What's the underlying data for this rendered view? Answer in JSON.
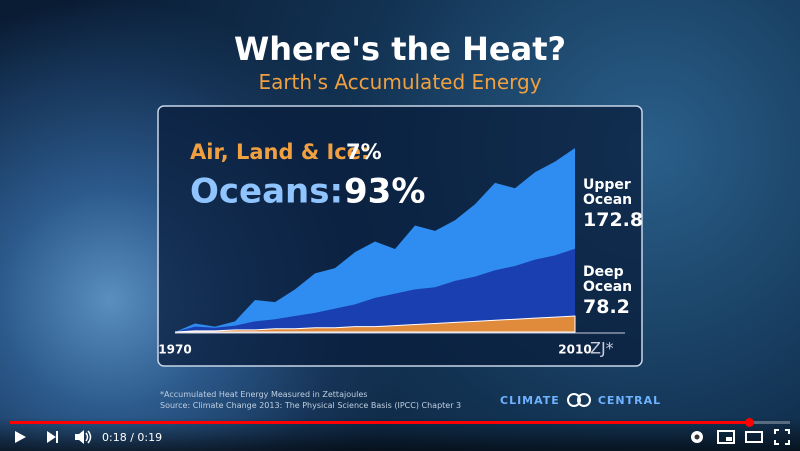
{
  "video": {
    "title": "Where's the Heat?",
    "subtitle": "Earth's Accumulated Energy",
    "footnote": "*Accumulated Heat Energy Measured in Zettajoules",
    "source": "Source: Climate Change 2013: The Physical Science Basis (IPCC) Chapter 3",
    "logo_left": "CLIMATE",
    "logo_right": "CENTRAL",
    "time": "0:18 / 0:19"
  },
  "chart_data": {
    "type": "area",
    "annotations": [
      {
        "label": "Air, Land & Ice:",
        "value": "7%"
      },
      {
        "label": "Oceans:",
        "value": "93%"
      }
    ],
    "unit": "ZJ*",
    "x": [
      1970,
      1972,
      1974,
      1976,
      1978,
      1980,
      1982,
      1984,
      1986,
      1988,
      1990,
      1992,
      1994,
      1996,
      1998,
      2000,
      2002,
      2004,
      2006,
      2008,
      2010
    ],
    "xlim": [
      1970,
      2010
    ],
    "xticks": [
      1970,
      2010
    ],
    "series": [
      {
        "name": "Upper Ocean",
        "color": "#2f8cf0",
        "values": [
          0,
          8,
          5,
          10,
          30,
          28,
          40,
          55,
          60,
          75,
          85,
          78,
          100,
          95,
          105,
          120,
          140,
          135,
          150,
          160,
          172.8
        ]
      },
      {
        "name": "Deep Ocean",
        "color": "#1a3fb0",
        "values": [
          0,
          5,
          4,
          6,
          10,
          12,
          15,
          18,
          22,
          26,
          32,
          36,
          40,
          42,
          48,
          52,
          58,
          62,
          68,
          72,
          78.2
        ]
      },
      {
        "color": "#e08a3c",
        "values": [
          0,
          1,
          1,
          2,
          2,
          3,
          3,
          4,
          4,
          5,
          5,
          6,
          7,
          8,
          9,
          10,
          11,
          12,
          13,
          14,
          15
        ]
      }
    ]
  }
}
